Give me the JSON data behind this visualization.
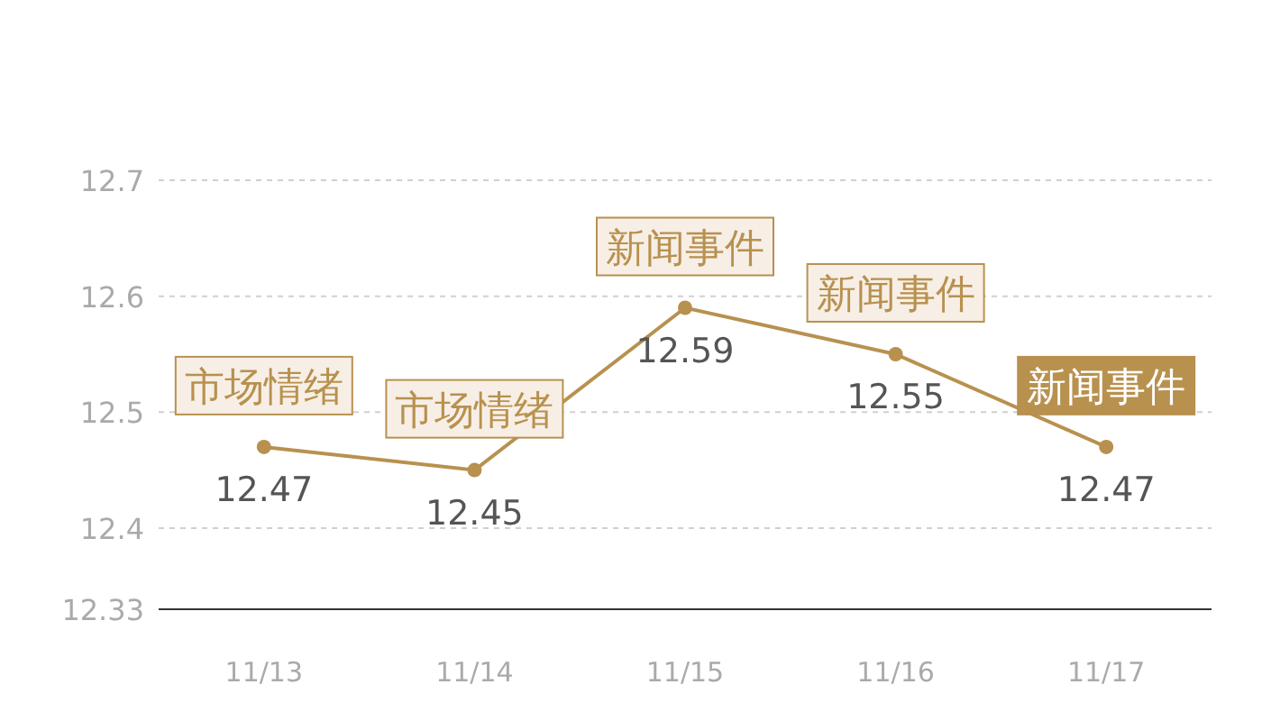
{
  "chart_data": {
    "type": "line",
    "categories": [
      "11/13",
      "11/14",
      "11/15",
      "11/16",
      "11/17"
    ],
    "series": [
      {
        "color": "#b8914f",
        "values": [
          12.47,
          12.45,
          12.59,
          12.55,
          12.47
        ]
      }
    ],
    "ylim": [
      12.33,
      12.7
    ],
    "yticks": [
      12.33,
      12.4,
      12.5,
      12.6,
      12.7
    ],
    "grid": "y",
    "marker": "circle",
    "data_labels": true,
    "annotations": [
      {
        "text": "市场情绪",
        "x": "11/13",
        "y": 12.47
      },
      {
        "text": "市场情绪",
        "x": "11/14",
        "y": 12.45
      },
      {
        "text": "新闻事件",
        "x": "11/15",
        "y": 12.59
      },
      {
        "text": "新闻事件",
        "x": "11/16",
        "y": 12.55
      },
      {
        "text": "新闻事件",
        "x": "11/17",
        "y": 12.47
      }
    ]
  }
}
